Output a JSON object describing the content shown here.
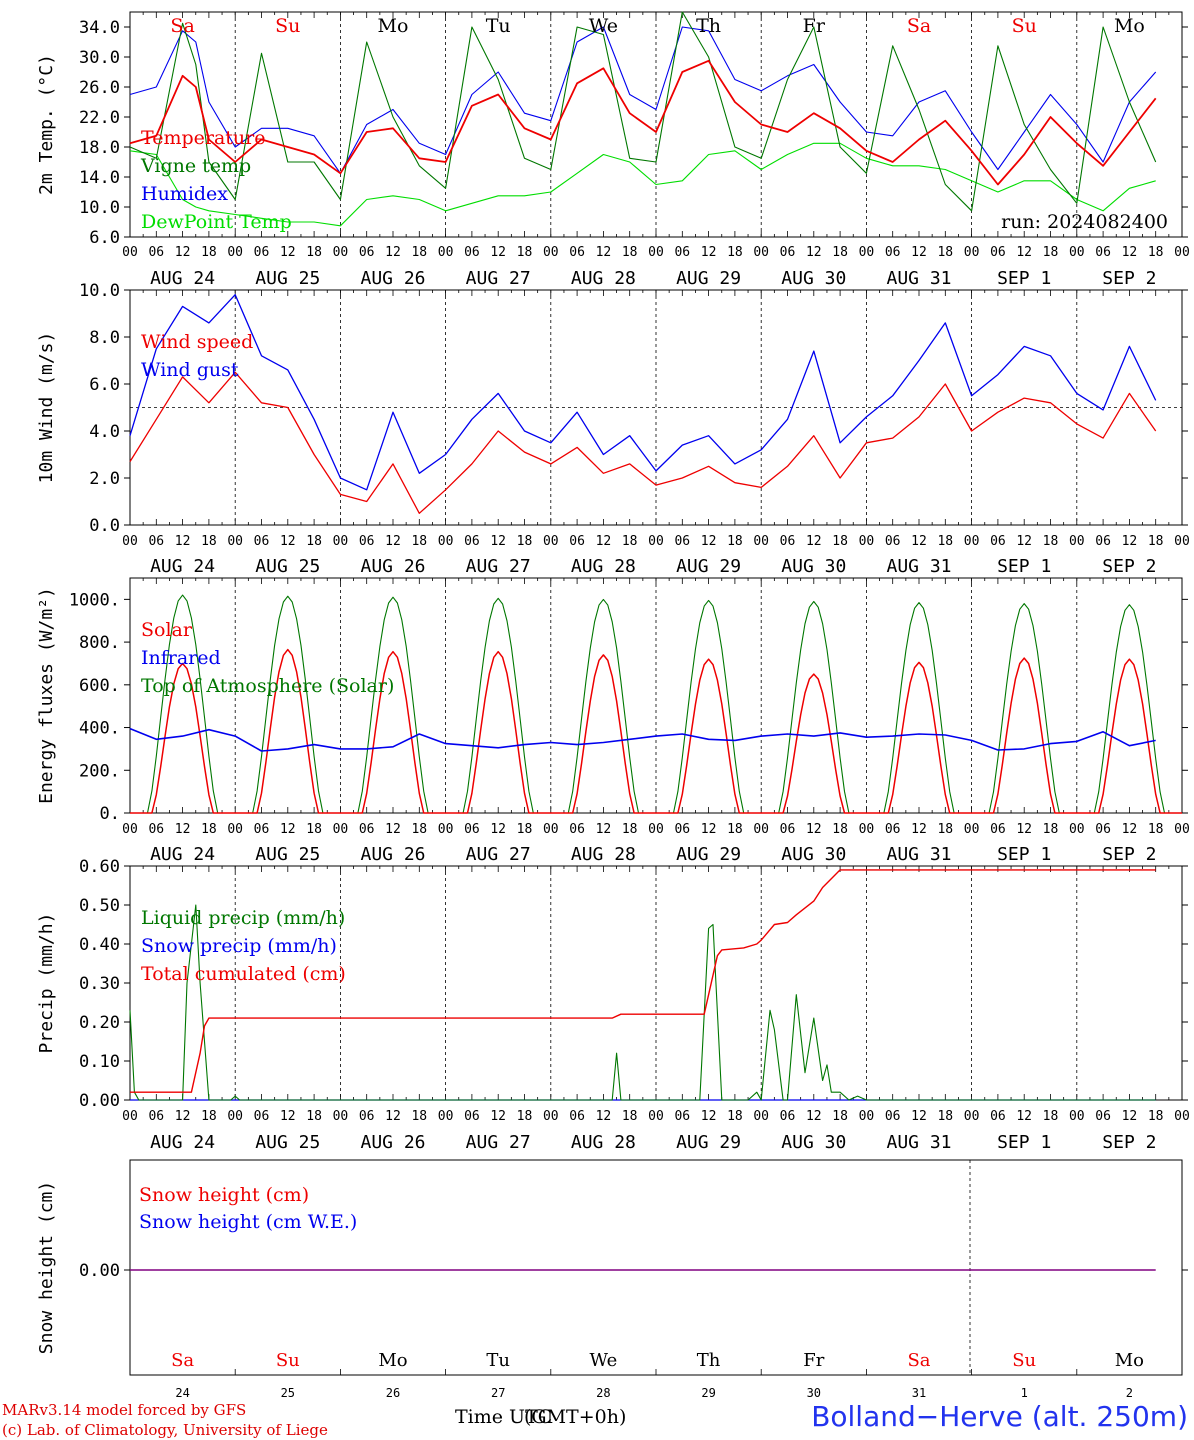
{
  "colors": {
    "red": "#ee0000",
    "green": "#007700",
    "blue": "#0000ee",
    "lime": "#00dd00",
    "purple": "#800080"
  },
  "footer": {
    "credit_line1": "MARv3.14 model forced by GFS",
    "credit_line2": "(c) Lab. of Climatology, University of Liege",
    "time_label": "Time UTC",
    "time_label_overprint": "(GMT+0h)",
    "station": "Bolland−Herve (alt. 250m)"
  },
  "chart_data": [
    {
      "type": "line",
      "id": "temperature",
      "ylabel": "2m Temp. (°C)",
      "ylim": [
        6,
        36
      ],
      "yticks": [
        "6.0",
        "10.0",
        "14.0",
        "18.0",
        "22.0",
        "26.0",
        "30.0",
        "34.0"
      ],
      "ytick_values": [
        6,
        10,
        14,
        18,
        22,
        26,
        30,
        34
      ],
      "days": [
        {
          "label": "Sa",
          "weekend": true
        },
        {
          "label": "Su",
          "weekend": true
        },
        {
          "label": "Mo",
          "weekend": false
        },
        {
          "label": "Tu",
          "weekend": false
        },
        {
          "label": "We",
          "weekend": false
        },
        {
          "label": "Th",
          "weekend": false
        },
        {
          "label": "Fr",
          "weekend": false
        },
        {
          "label": "Sa",
          "weekend": true
        },
        {
          "label": "Su",
          "weekend": true
        },
        {
          "label": "Mo",
          "weekend": false
        }
      ],
      "hour_labels": [
        "00",
        "06",
        "12",
        "18"
      ],
      "date_labels": [
        "AUG 24",
        "AUG 25",
        "AUG 26",
        "AUG 27",
        "AUG 28",
        "AUG 29",
        "AUG 30",
        "AUG 31",
        "SEP  1",
        "SEP  2"
      ],
      "x_unit": "hours since 2024-08-24 00 UTC",
      "annotation": "run: 2024082400",
      "series": [
        {
          "name": "Temperature",
          "color": "red",
          "x": [
            0,
            6,
            12,
            15,
            18,
            24,
            30,
            36,
            42,
            48,
            54,
            60,
            66,
            72,
            78,
            84,
            90,
            96,
            102,
            108,
            114,
            120,
            126,
            132,
            138,
            144,
            150,
            156,
            162,
            168,
            174,
            180,
            186,
            192,
            198,
            204,
            210,
            216,
            222,
            228,
            234
          ],
          "y": [
            18.5,
            19.5,
            27.5,
            26.0,
            19.0,
            16.0,
            19.0,
            18.0,
            17.0,
            14.5,
            20.0,
            20.5,
            16.5,
            16.0,
            23.5,
            25.0,
            20.5,
            19.0,
            26.5,
            28.5,
            22.5,
            20.0,
            28.0,
            29.5,
            24.0,
            21.0,
            20.0,
            22.5,
            20.5,
            17.5,
            16.0,
            19.0,
            21.5,
            17.5,
            13.0,
            17.0,
            22.0,
            18.5,
            15.5,
            20.0,
            24.5
          ]
        },
        {
          "name": "Vigne temp",
          "color": "green",
          "x": [
            0,
            6,
            12,
            15,
            18,
            24,
            30,
            36,
            42,
            48,
            54,
            60,
            66,
            72,
            78,
            84,
            90,
            96,
            102,
            108,
            114,
            120,
            126,
            132,
            138,
            144,
            150,
            156,
            162,
            168,
            174,
            180,
            186,
            192,
            198,
            204,
            210,
            216,
            222,
            228,
            234
          ],
          "y": [
            18.0,
            16.5,
            34.5,
            29.0,
            16.0,
            11.0,
            30.5,
            16.0,
            16.0,
            11.0,
            32.0,
            22.0,
            15.5,
            12.5,
            34.0,
            27.0,
            16.5,
            15.0,
            34.0,
            33.0,
            16.5,
            16.0,
            36.0,
            30.0,
            18.0,
            16.5,
            27.0,
            34.0,
            18.0,
            14.5,
            31.5,
            23.0,
            13.0,
            9.5,
            31.5,
            21.0,
            15.0,
            10.5,
            34.0,
            24.0,
            16.0
          ]
        },
        {
          "name": "Humidex",
          "color": "blue",
          "x": [
            0,
            6,
            12,
            15,
            18,
            24,
            30,
            36,
            42,
            48,
            54,
            60,
            66,
            72,
            78,
            84,
            90,
            96,
            102,
            108,
            114,
            120,
            126,
            132,
            138,
            144,
            150,
            156,
            162,
            168,
            174,
            180,
            186,
            192,
            198,
            204,
            210,
            216,
            222,
            228,
            234
          ],
          "y": [
            25.0,
            26.0,
            33.5,
            32.0,
            24.0,
            18.0,
            20.5,
            20.5,
            19.5,
            14.5,
            21.0,
            23.0,
            18.5,
            17.0,
            25.0,
            28.0,
            22.5,
            21.5,
            32.0,
            34.0,
            25.0,
            23.0,
            34.0,
            33.5,
            27.0,
            25.5,
            27.5,
            29.0,
            24.0,
            20.0,
            19.5,
            24.0,
            25.5,
            20.0,
            15.0,
            20.0,
            25.0,
            21.0,
            16.0,
            24.0,
            28.0
          ]
        },
        {
          "name": "DewPoint Temp",
          "color": "lime",
          "x": [
            0,
            6,
            12,
            15,
            18,
            24,
            30,
            36,
            42,
            48,
            54,
            60,
            66,
            72,
            78,
            84,
            90,
            96,
            102,
            108,
            114,
            120,
            126,
            132,
            138,
            144,
            150,
            156,
            162,
            168,
            174,
            180,
            186,
            192,
            198,
            204,
            210,
            216,
            222,
            228,
            234
          ],
          "y": [
            17.5,
            17.0,
            11.0,
            10.0,
            9.5,
            9.0,
            8.5,
            8.0,
            8.0,
            7.5,
            11.0,
            11.5,
            11.0,
            9.5,
            10.5,
            11.5,
            11.5,
            12.0,
            14.5,
            17.0,
            16.0,
            13.0,
            13.5,
            17.0,
            17.5,
            15.0,
            17.0,
            18.5,
            18.5,
            16.5,
            15.5,
            15.5,
            15.0,
            13.5,
            12.0,
            13.5,
            13.5,
            11.0,
            9.5,
            12.5,
            13.5
          ]
        }
      ]
    },
    {
      "type": "line",
      "id": "wind",
      "ylabel": "10m Wind (m/s)",
      "ylim": [
        0,
        10
      ],
      "yticks": [
        "0.0",
        "2.0",
        "4.0",
        "6.0",
        "8.0",
        "10.0"
      ],
      "ytick_values": [
        0,
        2,
        4,
        6,
        8,
        10
      ],
      "hour_labels": [
        "00",
        "06",
        "12",
        "18"
      ],
      "date_labels": [
        "AUG 24",
        "AUG 25",
        "AUG 26",
        "AUG 27",
        "AUG 28",
        "AUG 29",
        "AUG 30",
        "AUG 31",
        "SEP  1",
        "SEP  2"
      ],
      "reference_line": 5,
      "series": [
        {
          "name": "Wind speed",
          "color": "red",
          "x": [
            0,
            6,
            12,
            18,
            24,
            30,
            36,
            42,
            48,
            54,
            60,
            66,
            72,
            78,
            84,
            90,
            96,
            102,
            108,
            114,
            120,
            126,
            132,
            138,
            144,
            150,
            156,
            162,
            168,
            174,
            180,
            186,
            192,
            198,
            204,
            210,
            216,
            222,
            228,
            234
          ],
          "y": [
            2.7,
            4.5,
            6.3,
            5.2,
            6.5,
            5.2,
            5.0,
            3.0,
            1.3,
            1.0,
            2.6,
            0.5,
            1.5,
            2.6,
            4.0,
            3.1,
            2.6,
            3.3,
            2.2,
            2.6,
            1.7,
            2.0,
            2.5,
            1.8,
            1.6,
            2.5,
            3.8,
            2.0,
            3.5,
            3.7,
            4.6,
            6.0,
            4.0,
            4.8,
            5.4,
            5.2,
            4.3,
            3.7,
            5.6,
            4.0
          ]
        },
        {
          "name": "Wind gust",
          "color": "blue",
          "x": [
            0,
            6,
            12,
            18,
            24,
            30,
            36,
            42,
            48,
            54,
            60,
            66,
            72,
            78,
            84,
            90,
            96,
            102,
            108,
            114,
            120,
            126,
            132,
            138,
            144,
            150,
            156,
            162,
            168,
            174,
            180,
            186,
            192,
            198,
            204,
            210,
            216,
            222,
            228,
            234
          ],
          "y": [
            3.8,
            7.5,
            9.3,
            8.6,
            9.8,
            7.2,
            6.6,
            4.5,
            2.0,
            1.5,
            4.8,
            2.2,
            3.0,
            4.5,
            5.6,
            4.0,
            3.5,
            4.8,
            3.0,
            3.8,
            2.3,
            3.4,
            3.8,
            2.6,
            3.2,
            4.5,
            7.4,
            3.5,
            4.6,
            5.5,
            7.0,
            8.6,
            5.5,
            6.4,
            7.6,
            7.2,
            5.6,
            4.9,
            7.6,
            5.3
          ]
        }
      ]
    },
    {
      "type": "line",
      "id": "energy",
      "ylabel": "Energy fluxes (W/m²)",
      "ylim": [
        0,
        1100
      ],
      "yticks": [
        "0.",
        "200.",
        "400.",
        "600.",
        "800.",
        "1000."
      ],
      "ytick_values": [
        0,
        200,
        400,
        600,
        800,
        1000
      ],
      "hour_labels": [
        "00",
        "06",
        "12",
        "18"
      ],
      "date_labels": [
        "AUG 24",
        "AUG 25",
        "AUG 26",
        "AUG 27",
        "AUG 28",
        "AUG 29",
        "AUG 30",
        "AUG 31",
        "SEP  1",
        "SEP  2"
      ],
      "daily_solar_peak": [
        700,
        765,
        755,
        755,
        740,
        720,
        650,
        705,
        725,
        720
      ],
      "daily_toa_peak": [
        1020,
        1015,
        1010,
        1005,
        1000,
        995,
        990,
        985,
        980,
        975
      ],
      "series": [
        {
          "name": "Solar",
          "color": "red"
        },
        {
          "name": "Infrared",
          "color": "blue",
          "x": [
            0,
            6,
            12,
            18,
            24,
            30,
            36,
            42,
            48,
            54,
            60,
            66,
            72,
            78,
            84,
            90,
            96,
            102,
            108,
            114,
            120,
            126,
            132,
            138,
            144,
            150,
            156,
            162,
            168,
            174,
            180,
            186,
            192,
            198,
            204,
            210,
            216,
            222,
            228,
            234
          ],
          "y": [
            395,
            345,
            360,
            390,
            360,
            290,
            300,
            320,
            300,
            300,
            310,
            370,
            325,
            315,
            305,
            320,
            330,
            320,
            330,
            345,
            360,
            370,
            345,
            340,
            360,
            370,
            360,
            375,
            355,
            360,
            370,
            365,
            340,
            295,
            300,
            325,
            335,
            380,
            315,
            340
          ]
        },
        {
          "name": "Top of Atmosphere (Solar)",
          "color": "green"
        }
      ]
    },
    {
      "type": "line",
      "id": "precip",
      "ylabel": "Precip (mm/h)",
      "ylim": [
        0,
        0.6
      ],
      "yticks": [
        "0.00",
        "0.10",
        "0.20",
        "0.30",
        "0.40",
        "0.50",
        "0.60"
      ],
      "ytick_values": [
        0,
        0.1,
        0.2,
        0.3,
        0.4,
        0.5,
        0.6
      ],
      "hour_labels": [
        "00",
        "06",
        "12",
        "18"
      ],
      "date_labels": [
        "AUG 24",
        "AUG 25",
        "AUG 26",
        "AUG 27",
        "AUG 28",
        "AUG 29",
        "AUG 30",
        "AUG 31",
        "SEP  1",
        "SEP  2"
      ],
      "series": [
        {
          "name": "Liquid precip (mm/h)",
          "color": "green",
          "x": [
            0,
            1,
            2,
            12,
            13,
            15,
            16,
            18,
            20,
            23,
            24,
            25,
            26,
            110,
            111,
            112,
            113,
            130,
            132,
            133,
            135,
            136,
            141,
            143,
            144,
            146,
            147,
            149,
            150,
            152,
            154,
            156,
            158,
            159,
            160,
            162,
            164,
            166,
            168,
            234
          ],
          "y": [
            0.23,
            0.02,
            0.0,
            0.0,
            0.3,
            0.5,
            0.3,
            0.0,
            0.0,
            0.0,
            0.01,
            0.0,
            0.0,
            0.0,
            0.12,
            0.0,
            0.0,
            0.0,
            0.44,
            0.45,
            0.0,
            0.0,
            0.0,
            0.02,
            0.0,
            0.23,
            0.18,
            0.0,
            0.0,
            0.27,
            0.07,
            0.21,
            0.05,
            0.09,
            0.02,
            0.02,
            0.0,
            0.01,
            0.0,
            0.0
          ]
        },
        {
          "name": "Snow precip (mm/h)",
          "color": "blue",
          "x": [
            0,
            234
          ],
          "y": [
            0,
            0
          ]
        },
        {
          "name": "Total cumulated (cm)",
          "color": "red",
          "x": [
            0,
            14,
            16,
            17,
            18,
            24,
            110,
            112,
            131,
            132,
            134,
            135,
            140,
            143,
            144,
            147,
            150,
            152,
            156,
            158,
            162,
            234
          ],
          "y": [
            0.02,
            0.02,
            0.12,
            0.19,
            0.21,
            0.21,
            0.21,
            0.22,
            0.22,
            0.27,
            0.37,
            0.385,
            0.39,
            0.4,
            0.41,
            0.45,
            0.455,
            0.475,
            0.51,
            0.545,
            0.59,
            0.59
          ]
        }
      ]
    },
    {
      "type": "line",
      "id": "snow",
      "ylabel": "Snow height (cm)",
      "yticks": [
        "0.00"
      ],
      "ytick_values": [
        0
      ],
      "date_numbers": [
        "24",
        "25",
        "26",
        "27",
        "28",
        "29",
        "30",
        "31",
        "1",
        "2"
      ],
      "series": [
        {
          "name": "Snow height (cm)",
          "color": "red",
          "x": [
            0,
            234
          ],
          "y": [
            0,
            0
          ]
        },
        {
          "name": "Snow height (cm W.E.)",
          "color": "blue",
          "x": [
            0,
            234
          ],
          "y": [
            0,
            0
          ]
        }
      ]
    }
  ]
}
